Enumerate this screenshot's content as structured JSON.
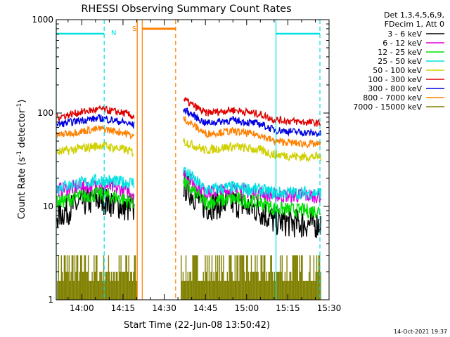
{
  "chart_data": {
    "type": "line",
    "title": "RHESSI Observing Summary Count Rates",
    "xlabel": "Start Time (22-Jun-08 13:50:42)",
    "ylabel": "Count Rate (s",
    "ylabel_sup": "-1",
    "ylabel_mid": " detector",
    "ylabel_end": ")",
    "yscale": "log",
    "ylim": [
      1,
      1000
    ],
    "xlim": [
      "13:50:42",
      "15:30:00"
    ],
    "x_ticks": [
      "14:00",
      "14:15",
      "14:30",
      "14:45",
      "15:00",
      "15:15",
      "15:30"
    ],
    "y_ticks": [
      "1",
      "10",
      "100",
      "1000"
    ],
    "legend_header": [
      "Det 1,3,4,5,6,9,",
      "FDecim 1, Att 0"
    ],
    "legend_position": "right",
    "series": [
      {
        "name": "3 - 6 keV",
        "color": "#000000",
        "x": [
          "13:51",
          "14:00",
          "14:07",
          "14:15",
          "14:19",
          "14:35",
          "14:37",
          "14:45",
          "14:55",
          "15:05",
          "15:10",
          "15:20",
          "15:27"
        ],
        "values": [
          8,
          11,
          12,
          10,
          9,
          null,
          17,
          10,
          11,
          9,
          7,
          6.5,
          6.5
        ]
      },
      {
        "name": "6 - 12 keV",
        "color": "#e000e0",
        "x": [
          "13:51",
          "14:00",
          "14:07",
          "14:15",
          "14:19",
          "14:35",
          "14:37",
          "14:45",
          "14:55",
          "15:05",
          "15:10",
          "15:20",
          "15:27"
        ],
        "values": [
          15,
          16,
          17,
          15,
          14,
          null,
          22,
          14,
          15,
          14,
          13,
          13,
          13
        ]
      },
      {
        "name": "12 - 25 keV",
        "color": "#00e000",
        "x": [
          "13:51",
          "14:00",
          "14:07",
          "14:15",
          "14:19",
          "14:35",
          "14:37",
          "14:45",
          "14:55",
          "15:05",
          "15:10",
          "15:20",
          "15:27"
        ],
        "values": [
          11,
          13,
          13.5,
          12,
          11,
          null,
          18,
          11,
          12,
          11,
          9.5,
          9,
          9
        ]
      },
      {
        "name": "25 - 50 keV",
        "color": "#00e0e0",
        "x": [
          "13:51",
          "14:00",
          "14:07",
          "14:15",
          "14:19",
          "14:35",
          "14:37",
          "14:45",
          "14:55",
          "15:05",
          "15:10",
          "15:20",
          "15:27"
        ],
        "values": [
          16,
          18,
          19,
          18,
          18,
          null,
          25,
          15,
          16,
          15,
          14,
          14,
          14
        ]
      },
      {
        "name": "50 - 100 keV",
        "color": "#d0d000",
        "x": [
          "13:51",
          "14:00",
          "14:07",
          "14:15",
          "14:19",
          "14:35",
          "14:37",
          "14:45",
          "14:55",
          "15:05",
          "15:10",
          "15:20",
          "15:27"
        ],
        "values": [
          38,
          42,
          45,
          41,
          38,
          null,
          50,
          40,
          44,
          40,
          36,
          34,
          34
        ]
      },
      {
        "name": "100 - 300 keV",
        "color": "#e00000",
        "x": [
          "13:51",
          "14:00",
          "14:07",
          "14:15",
          "14:19",
          "14:35",
          "14:37",
          "14:45",
          "14:55",
          "15:05",
          "15:10",
          "15:20",
          "15:27"
        ],
        "values": [
          90,
          103,
          110,
          100,
          92,
          null,
          140,
          100,
          108,
          97,
          85,
          80,
          78
        ]
      },
      {
        "name": "300 - 800 keV",
        "color": "#0000e0",
        "x": [
          "13:51",
          "14:00",
          "14:07",
          "14:15",
          "14:19",
          "14:35",
          "14:37",
          "14:45",
          "14:55",
          "15:05",
          "15:10",
          "15:20",
          "15:27"
        ],
        "values": [
          75,
          84,
          88,
          80,
          74,
          null,
          110,
          78,
          84,
          76,
          66,
          62,
          60
        ]
      },
      {
        "name": "800 - 7000 keV",
        "color": "#ff8000",
        "x": [
          "13:51",
          "14:00",
          "14:07",
          "14:15",
          "14:19",
          "14:35",
          "14:37",
          "14:45",
          "14:55",
          "15:05",
          "15:10",
          "15:20",
          "15:27"
        ],
        "values": [
          58,
          64,
          68,
          62,
          56,
          null,
          88,
          60,
          64,
          58,
          50,
          47,
          46
        ]
      },
      {
        "name": "7000 - 15000 keV",
        "color": "#808000",
        "x": [
          "13:51",
          "14:00",
          "14:07",
          "14:15",
          "14:19",
          "14:35",
          "14:37",
          "14:45",
          "14:55",
          "15:05",
          "15:10",
          "15:20",
          "15:27"
        ],
        "values": [
          2,
          2,
          3,
          2,
          2,
          null,
          1.6,
          2,
          3,
          2,
          1.6,
          1.4,
          1.4
        ]
      }
    ],
    "annotations": [
      {
        "label": "N",
        "color": "#00e0e0"
      },
      {
        "label": "S",
        "color": "#ff8000"
      }
    ],
    "footer_date": "14-Oct-2021 19:37"
  }
}
